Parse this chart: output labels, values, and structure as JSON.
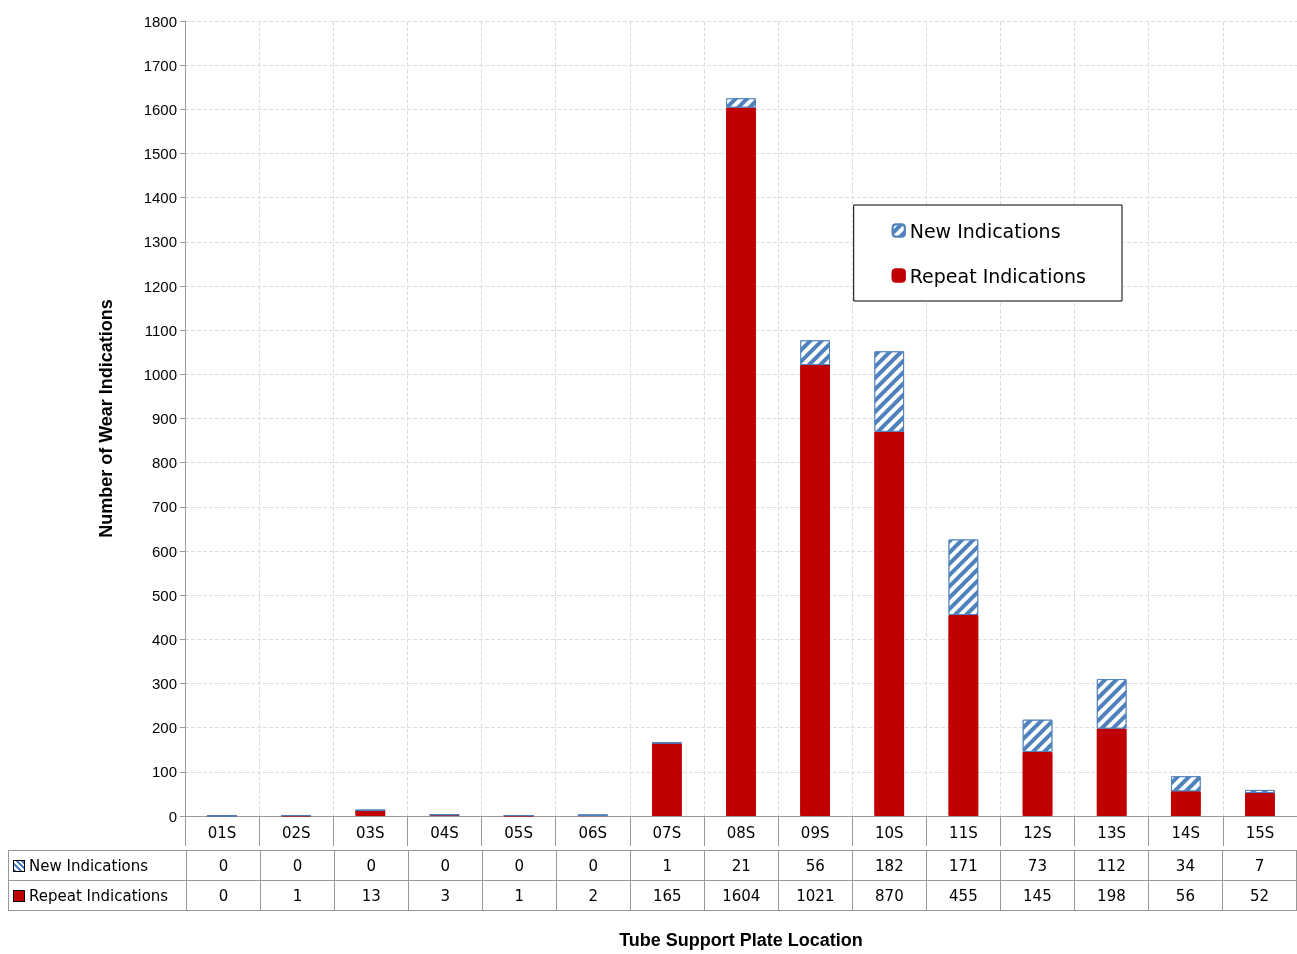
{
  "chart_data": {
    "type": "bar",
    "stacked": true,
    "xlabel": "Tube Support Plate Location",
    "ylabel": "Number of Wear Indications",
    "categories": [
      "01S",
      "02S",
      "03S",
      "04S",
      "05S",
      "06S",
      "07S",
      "08S",
      "09S",
      "10S",
      "11S",
      "12S",
      "13S",
      "14S",
      "15S"
    ],
    "series": [
      {
        "name": "Repeat Indications",
        "color": "#c00000",
        "values": [
          0,
          1,
          13,
          3,
          1,
          2,
          165,
          1604,
          1021,
          870,
          455,
          145,
          198,
          56,
          52
        ]
      },
      {
        "name": "New Indications",
        "color": "#4f81bd",
        "values": [
          0,
          0,
          0,
          0,
          0,
          0,
          1,
          21,
          56,
          182,
          171,
          73,
          112,
          34,
          7
        ]
      }
    ],
    "ylim": [
      0,
      1800
    ],
    "yticks": [
      0,
      100,
      200,
      300,
      400,
      500,
      600,
      700,
      800,
      900,
      1000,
      1100,
      1200,
      1300,
      1400,
      1500,
      1600,
      1700,
      1800
    ],
    "grid": true,
    "legend": "right",
    "data_labels": true
  }
}
